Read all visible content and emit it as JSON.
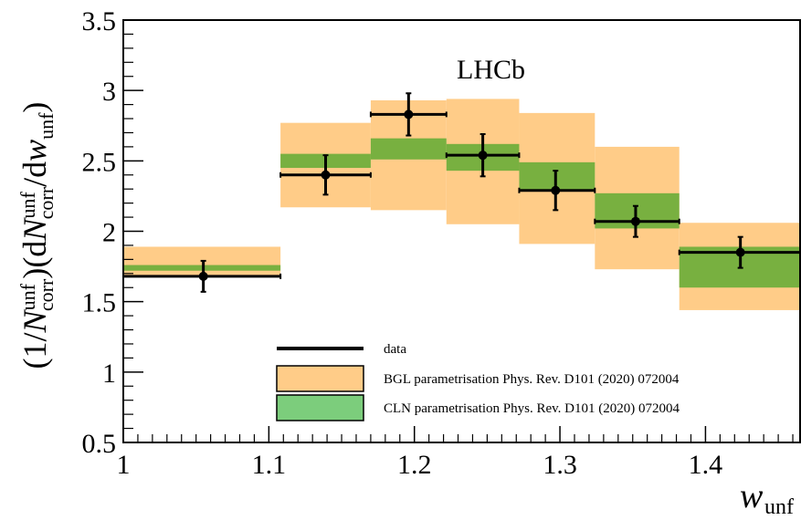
{
  "chart_data": {
    "type": "bar",
    "title": "",
    "annotation": "LHCb",
    "xlabel": "w",
    "xlabel_sub": "unf",
    "ylabel": "(1/N_corr^unf)(dN_corr^unf/dw_unf)",
    "xlim": [
      1.0,
      1.465
    ],
    "ylim": [
      0.5,
      3.5
    ],
    "x_ticks": [
      "1",
      "1.1",
      "1.2",
      "1.3",
      "1.4"
    ],
    "y_ticks": [
      "0.5",
      "1",
      "1.5",
      "2",
      "2.5",
      "3",
      "3.5"
    ],
    "grid": false,
    "legend_position": "bottom-center",
    "bins": [
      {
        "low": 1.0,
        "high": 1.108
      },
      {
        "low": 1.108,
        "high": 1.17
      },
      {
        "low": 1.17,
        "high": 1.222
      },
      {
        "low": 1.222,
        "high": 1.272
      },
      {
        "low": 1.272,
        "high": 1.324
      },
      {
        "low": 1.324,
        "high": 1.382
      },
      {
        "low": 1.382,
        "high": 1.465
      }
    ],
    "series": [
      {
        "name": "data",
        "type": "points",
        "x": [
          1.055,
          1.139,
          1.196,
          1.247,
          1.297,
          1.352,
          1.424
        ],
        "y": [
          1.68,
          2.4,
          2.83,
          2.54,
          2.29,
          2.07,
          1.85
        ],
        "y_err": [
          0.11,
          0.14,
          0.15,
          0.15,
          0.14,
          0.11,
          0.11
        ],
        "x_err_low": [
          0.055,
          0.031,
          0.026,
          0.025,
          0.025,
          0.028,
          0.042
        ],
        "x_err_high": [
          0.053,
          0.031,
          0.026,
          0.025,
          0.027,
          0.03,
          0.041
        ],
        "color": "#000000"
      },
      {
        "name": "BGL parametrisation Phys. Rev. D101 (2020) 072004",
        "type": "band",
        "low": [
          1.68,
          2.17,
          2.15,
          2.05,
          1.91,
          1.73,
          1.44
        ],
        "high": [
          1.89,
          2.77,
          2.93,
          2.94,
          2.84,
          2.6,
          2.06
        ],
        "color": "#ffcc88"
      },
      {
        "name": "CLN parametrisation Phys. Rev. D101 (2020) 072004",
        "type": "band",
        "low": [
          1.72,
          2.45,
          2.51,
          2.43,
          2.29,
          2.02,
          1.6
        ],
        "high": [
          1.76,
          2.55,
          2.66,
          2.62,
          2.49,
          2.27,
          1.89
        ],
        "color": "#78b040"
      }
    ]
  },
  "legend_swatch_colors": {
    "bgl": "#ffcc88",
    "cln": "#7ccd7c"
  }
}
